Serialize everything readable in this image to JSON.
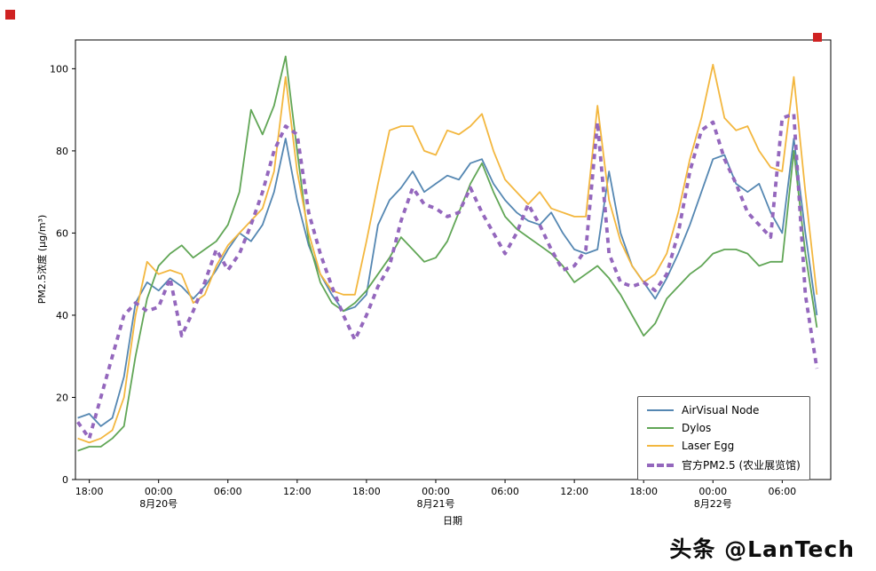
{
  "watermark": "头条 @LanTech",
  "chart_data": {
    "type": "line",
    "title": "",
    "xlabel": "日期",
    "ylabel": "PM2.5浓度 (μg/m³)",
    "ylim": [
      0,
      107
    ],
    "yticks": [
      0,
      20,
      40,
      60,
      80,
      100
    ],
    "x_step_hours": 1,
    "xticks": [
      {
        "pos": 1,
        "label": "18:00",
        "date": ""
      },
      {
        "pos": 7,
        "label": "00:00",
        "date": "8月20号"
      },
      {
        "pos": 13,
        "label": "06:00",
        "date": ""
      },
      {
        "pos": 19,
        "label": "12:00",
        "date": ""
      },
      {
        "pos": 25,
        "label": "18:00",
        "date": ""
      },
      {
        "pos": 31,
        "label": "00:00",
        "date": "8月21号"
      },
      {
        "pos": 37,
        "label": "06:00",
        "date": ""
      },
      {
        "pos": 43,
        "label": "12:00",
        "date": ""
      },
      {
        "pos": 49,
        "label": "18:00",
        "date": ""
      },
      {
        "pos": 55,
        "label": "00:00",
        "date": "8月22号"
      },
      {
        "pos": 61,
        "label": "06:00",
        "date": ""
      }
    ],
    "legend_position": "lower right",
    "grid": false,
    "series": [
      {
        "id": "airvisual-node",
        "name": "AirVisual Node",
        "color": "#5587b2",
        "style": "solid",
        "values": [
          15,
          16,
          13,
          15,
          25,
          43,
          48,
          46,
          49,
          47,
          44,
          47,
          51,
          56,
          60,
          58,
          62,
          70,
          83,
          68,
          57,
          50,
          45,
          41,
          42,
          45,
          62,
          68,
          71,
          75,
          70,
          72,
          74,
          73,
          77,
          78,
          72,
          68,
          65,
          63,
          62,
          65,
          60,
          56,
          55,
          56,
          75,
          60,
          52,
          48,
          44,
          49,
          55,
          62,
          70,
          78,
          79,
          72,
          70,
          72,
          65,
          60,
          83,
          60,
          40
        ]
      },
      {
        "id": "dylos",
        "name": "Dylos",
        "color": "#61a656",
        "style": "solid",
        "values": [
          7,
          8,
          8,
          10,
          13,
          30,
          44,
          52,
          55,
          57,
          54,
          56,
          58,
          62,
          70,
          90,
          84,
          91,
          103,
          80,
          58,
          48,
          43,
          41,
          43,
          46,
          50,
          54,
          59,
          56,
          53,
          54,
          58,
          65,
          72,
          77,
          70,
          64,
          61,
          59,
          57,
          55,
          52,
          48,
          50,
          52,
          49,
          45,
          40,
          35,
          38,
          44,
          47,
          50,
          52,
          55,
          56,
          56,
          55,
          52,
          53,
          53,
          80,
          55,
          37
        ]
      },
      {
        "id": "laser-egg",
        "name": "Laser Egg",
        "color": "#f3b73f",
        "style": "solid",
        "values": [
          10,
          9,
          10,
          12,
          20,
          40,
          53,
          50,
          51,
          50,
          43,
          45,
          52,
          57,
          60,
          63,
          66,
          75,
          98,
          75,
          60,
          50,
          46,
          45,
          45,
          58,
          72,
          85,
          86,
          86,
          80,
          79,
          85,
          84,
          86,
          89,
          80,
          73,
          70,
          67,
          70,
          66,
          65,
          64,
          64,
          91,
          68,
          58,
          52,
          48,
          50,
          55,
          65,
          78,
          88,
          101,
          88,
          85,
          86,
          80,
          76,
          75,
          98,
          70,
          45
        ]
      },
      {
        "id": "official-pm25",
        "name": "官方PM2.5 (农业展览馆)",
        "color": "#9467bd",
        "style": "dashed",
        "values": [
          14,
          10,
          20,
          30,
          40,
          43,
          41,
          42,
          49,
          35,
          41,
          48,
          56,
          51,
          55,
          62,
          70,
          80,
          86,
          84,
          65,
          55,
          47,
          40,
          34,
          40,
          47,
          52,
          63,
          71,
          67,
          66,
          64,
          65,
          71,
          65,
          60,
          55,
          60,
          67,
          62,
          56,
          51,
          52,
          56,
          87,
          55,
          48,
          47,
          48,
          46,
          50,
          60,
          75,
          85,
          87,
          78,
          72,
          65,
          62,
          59,
          88,
          89,
          45,
          27
        ]
      }
    ]
  }
}
